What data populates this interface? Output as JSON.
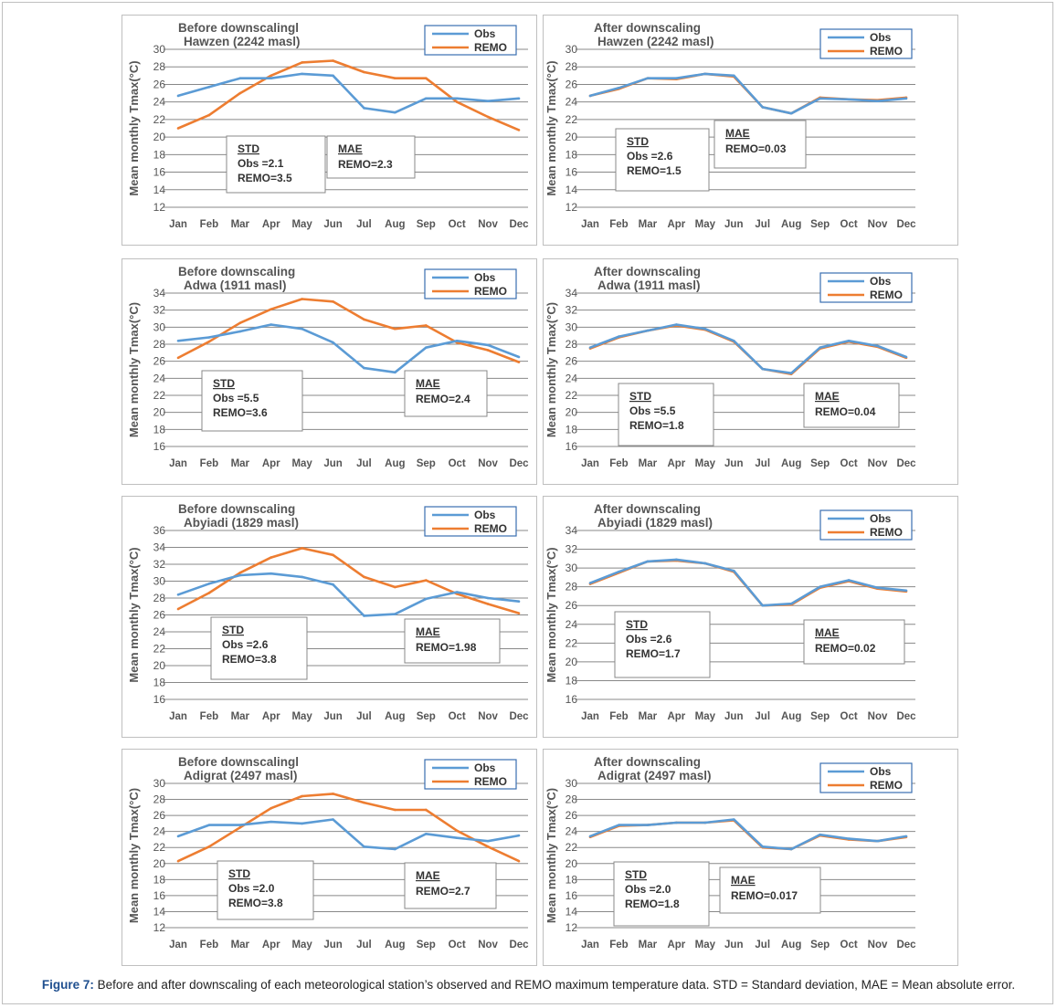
{
  "series_names": [
    "Obs",
    "REMO"
  ],
  "months": [
    "Jan",
    "Feb",
    "Mar",
    "Apr",
    "May",
    "Jun",
    "Jul",
    "Aug",
    "Sep",
    "Oct",
    "Nov",
    "Dec"
  ],
  "ylabel": "Mean monthly Tmax(°C)",
  "colors": {
    "obs": "#5b9bd5",
    "remo": "#ed7d31",
    "grid": "#888888",
    "text": "#555555"
  },
  "caption": {
    "label": "Figure 7:",
    "text": " Before and after downscaling of each meteorological station’s observed and REMO maximum temperature data. STD = Standard deviation, MAE = Mean absolute error."
  },
  "chart_data": [
    {
      "type": "line",
      "title": "Before downscalingl",
      "subtitle": "Hawzen (2242 masl)",
      "ylim": [
        12,
        30
      ],
      "x": [
        "Jan",
        "Feb",
        "Mar",
        "Apr",
        "May",
        "Jun",
        "Jul",
        "Aug",
        "Sep",
        "Oct",
        "Nov",
        "Dec"
      ],
      "series": [
        {
          "name": "Obs",
          "values": [
            24.7,
            25.7,
            26.7,
            26.7,
            27.2,
            27.0,
            23.3,
            22.8,
            24.4,
            24.4,
            24.1,
            24.4
          ]
        },
        {
          "name": "REMO",
          "values": [
            21.0,
            22.5,
            25.0,
            27.0,
            28.5,
            28.7,
            27.4,
            26.7,
            26.7,
            24.0,
            22.3,
            20.8
          ]
        }
      ],
      "std": {
        "heading": "STD",
        "obs": "Obs    =2.1",
        "remo": "REMO=3.5"
      },
      "mae": {
        "heading": "MAE",
        "remo": "REMO=2.3"
      }
    },
    {
      "type": "line",
      "title": "After downscaling",
      "subtitle": "Hawzen (2242 masl)",
      "ylim": [
        12,
        30
      ],
      "x": [
        "Jan",
        "Feb",
        "Mar",
        "Apr",
        "May",
        "Jun",
        "Jul",
        "Aug",
        "Sep",
        "Oct",
        "Nov",
        "Dec"
      ],
      "series": [
        {
          "name": "Obs",
          "values": [
            24.7,
            25.6,
            26.7,
            26.7,
            27.2,
            27.0,
            23.4,
            22.7,
            24.4,
            24.3,
            24.1,
            24.4
          ]
        },
        {
          "name": "REMO",
          "values": [
            24.7,
            25.5,
            26.7,
            26.6,
            27.2,
            26.9,
            23.4,
            22.7,
            24.5,
            24.3,
            24.2,
            24.5
          ]
        }
      ],
      "std": {
        "heading": "STD",
        "obs": "Obs    =2.6",
        "remo": "REMO=1.5"
      },
      "mae": {
        "heading": "MAE",
        "remo": "REMO=0.03"
      }
    },
    {
      "type": "line",
      "title": "Before downscaling",
      "subtitle": "Adwa (1911 masl)",
      "ylim": [
        16,
        34
      ],
      "x": [
        "Jan",
        "Feb",
        "Mar",
        "Apr",
        "May",
        "Jun",
        "Jul",
        "Aug",
        "Sep",
        "Oct",
        "Nov",
        "Dec"
      ],
      "series": [
        {
          "name": "Obs",
          "values": [
            28.4,
            28.8,
            29.5,
            30.3,
            29.8,
            28.2,
            25.2,
            24.7,
            27.6,
            28.4,
            27.9,
            26.5
          ]
        },
        {
          "name": "REMO",
          "values": [
            26.4,
            28.3,
            30.5,
            32.1,
            33.3,
            33.0,
            30.9,
            29.8,
            30.2,
            28.2,
            27.3,
            25.9
          ]
        }
      ],
      "std": {
        "heading": "STD",
        "obs": "Obs    =5.5",
        "remo": "REMO=3.6"
      },
      "mae": {
        "heading": "MAE",
        "remo": "REMO=2.4"
      }
    },
    {
      "type": "line",
      "title": "After downscaling",
      "subtitle": "Adwa (1911 masl)",
      "ylim": [
        16,
        34
      ],
      "x": [
        "Jan",
        "Feb",
        "Mar",
        "Apr",
        "May",
        "Jun",
        "Jul",
        "Aug",
        "Sep",
        "Oct",
        "Nov",
        "Dec"
      ],
      "series": [
        {
          "name": "Obs",
          "values": [
            27.6,
            28.9,
            29.6,
            30.3,
            29.8,
            28.4,
            25.1,
            24.6,
            27.6,
            28.4,
            27.8,
            26.5
          ]
        },
        {
          "name": "REMO",
          "values": [
            27.5,
            28.8,
            29.6,
            30.2,
            29.7,
            28.3,
            25.1,
            24.5,
            27.5,
            28.3,
            27.7,
            26.4
          ]
        }
      ],
      "std": {
        "heading": "STD",
        "obs": "Obs    =5.5",
        "remo": "REMO=1.8"
      },
      "mae": {
        "heading": "MAE",
        "remo": "REMO=0.04"
      }
    },
    {
      "type": "line",
      "title": "Before downscaling",
      "subtitle": "Abyiadi (1829 masl)",
      "ylim": [
        16,
        36
      ],
      "x": [
        "Jan",
        "Feb",
        "Mar",
        "Apr",
        "May",
        "Jun",
        "Jul",
        "Aug",
        "Sep",
        "Oct",
        "Nov",
        "Dec"
      ],
      "series": [
        {
          "name": "Obs",
          "values": [
            28.4,
            29.7,
            30.7,
            30.9,
            30.5,
            29.6,
            25.9,
            26.1,
            27.9,
            28.7,
            28.0,
            27.6
          ]
        },
        {
          "name": "REMO",
          "values": [
            26.7,
            28.6,
            31.0,
            32.8,
            33.9,
            33.1,
            30.5,
            29.3,
            30.1,
            28.5,
            27.3,
            26.2
          ]
        }
      ],
      "std": {
        "heading": "STD",
        "obs": "Obs    =2.6",
        "remo": "REMO=3.8"
      },
      "mae": {
        "heading": "MAE",
        "remo": "REMO=1.98"
      }
    },
    {
      "type": "line",
      "title": "After downscaling",
      "subtitle": "Abyiadi (1829 masl)",
      "ylim": [
        16,
        34
      ],
      "x": [
        "Jan",
        "Feb",
        "Mar",
        "Apr",
        "May",
        "Jun",
        "Jul",
        "Aug",
        "Sep",
        "Oct",
        "Nov",
        "Dec"
      ],
      "series": [
        {
          "name": "Obs",
          "values": [
            28.4,
            29.6,
            30.7,
            30.9,
            30.5,
            29.7,
            26.0,
            26.2,
            28.0,
            28.7,
            27.9,
            27.6
          ]
        },
        {
          "name": "REMO",
          "values": [
            28.3,
            29.5,
            30.7,
            30.8,
            30.5,
            29.6,
            26.0,
            26.1,
            27.9,
            28.6,
            27.8,
            27.5
          ]
        }
      ],
      "std": {
        "heading": "STD",
        "obs": "Obs    =2.6",
        "remo": "REMO=1.7"
      },
      "mae": {
        "heading": "MAE",
        "remo": "REMO=0.02"
      }
    },
    {
      "type": "line",
      "title": "Before downscalingl",
      "subtitle": "Adigrat (2497 masl)",
      "ylim": [
        12,
        30
      ],
      "x": [
        "Jan",
        "Feb",
        "Mar",
        "Apr",
        "May",
        "Jun",
        "Jul",
        "Aug",
        "Sep",
        "Oct",
        "Nov",
        "Dec"
      ],
      "series": [
        {
          "name": "Obs",
          "values": [
            23.4,
            24.8,
            24.8,
            25.2,
            25.0,
            25.5,
            22.1,
            21.8,
            23.7,
            23.2,
            22.8,
            23.5
          ]
        },
        {
          "name": "REMO",
          "values": [
            20.3,
            22.1,
            24.5,
            26.9,
            28.4,
            28.7,
            27.6,
            26.7,
            26.7,
            24.1,
            22.1,
            20.3
          ]
        }
      ],
      "std": {
        "heading": "STD",
        "obs": "Obs    =2.0",
        "remo": "REMO=3.8"
      },
      "mae": {
        "heading": "MAE",
        "remo": "REMO=2.7"
      }
    },
    {
      "type": "line",
      "title": "After downscaling",
      "subtitle": "Adigrat (2497 masl)",
      "ylim": [
        12,
        30
      ],
      "x": [
        "Jan",
        "Feb",
        "Mar",
        "Apr",
        "May",
        "Jun",
        "Jul",
        "Aug",
        "Sep",
        "Oct",
        "Nov",
        "Dec"
      ],
      "series": [
        {
          "name": "Obs",
          "values": [
            23.4,
            24.8,
            24.8,
            25.1,
            25.1,
            25.5,
            22.1,
            21.8,
            23.6,
            23.1,
            22.8,
            23.4
          ]
        },
        {
          "name": "REMO",
          "values": [
            23.3,
            24.7,
            24.8,
            25.1,
            25.1,
            25.4,
            22.0,
            21.8,
            23.5,
            23.0,
            22.8,
            23.3
          ]
        }
      ],
      "std": {
        "heading": "STD",
        "obs": "Obs    =2.0",
        "remo": "REMO=1.8"
      },
      "mae": {
        "heading": "MAE",
        "remo": "REMO=0.017"
      }
    }
  ]
}
